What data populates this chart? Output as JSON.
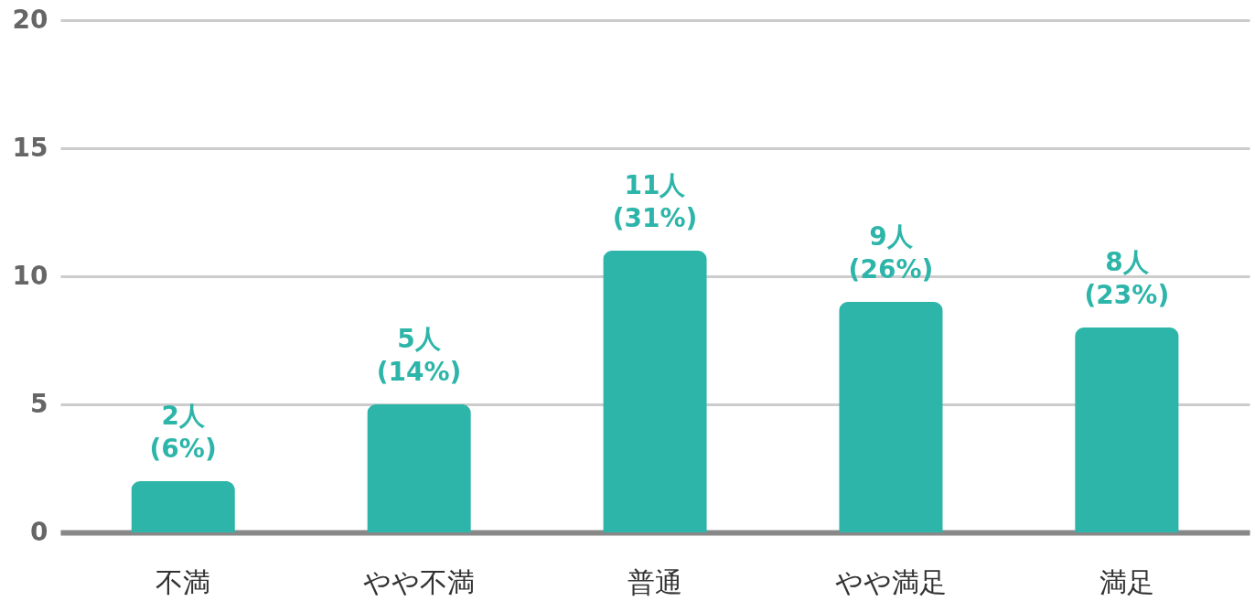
{
  "chart_data": {
    "type": "bar",
    "categories": [
      "不満",
      "やや不満",
      "普通",
      "やや満足",
      "満足"
    ],
    "series": [
      {
        "color": "#2db5a9",
        "values": [
          2,
          5,
          11,
          9,
          8
        ]
      }
    ],
    "value_labels": [
      "2人\n(6%)",
      "5人\n(14%)",
      "11人\n(31%)",
      "9人\n(26%)",
      "8人\n(23%)"
    ],
    "ylim": [
      0,
      20
    ],
    "yticks": [
      0,
      5,
      10,
      15,
      20
    ],
    "grid": "y"
  }
}
